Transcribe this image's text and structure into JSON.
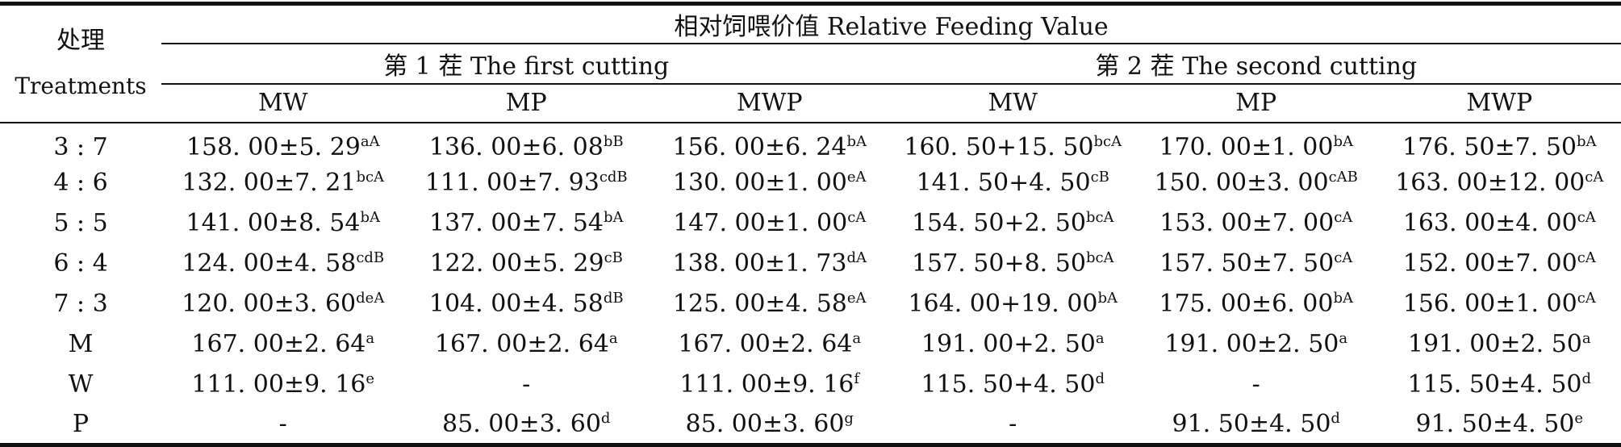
{
  "table": {
    "header": {
      "treatment_cn": "处理",
      "treatment_en": "Treatments",
      "rfv": "相对饲喂价值 Relative Feeding Value",
      "cutting1": "第 1 茬 The first cutting",
      "cutting2": "第 2 茬 The second cutting",
      "cols": [
        "MW",
        "MP",
        "MWP",
        "MW",
        "MP",
        "MWP"
      ]
    },
    "rows": [
      {
        "treatment": "3 : 7",
        "cells": [
          {
            "value": "158. 00±5. 29",
            "sig": "aA"
          },
          {
            "value": "136. 00±6. 08",
            "sig": "bB"
          },
          {
            "value": "156. 00±6. 24",
            "sig": "bA"
          },
          {
            "value": "160. 50+15. 50",
            "sig": "bcA"
          },
          {
            "value": "170. 00±1. 00",
            "sig": "bA"
          },
          {
            "value": "176. 50±7. 50",
            "sig": "bA"
          }
        ]
      },
      {
        "treatment": "4 : 6",
        "cells": [
          {
            "value": "132. 00±7. 21",
            "sig": "bcA"
          },
          {
            "value": "111. 00±7. 93",
            "sig": "cdB"
          },
          {
            "value": "130. 00±1. 00",
            "sig": "eA"
          },
          {
            "value": "141. 50+4. 50",
            "sig": "cB"
          },
          {
            "value": "150. 00±3. 00",
            "sig": "cAB"
          },
          {
            "value": "163. 00±12. 00",
            "sig": "cA"
          }
        ]
      },
      {
        "treatment": "5 : 5",
        "cells": [
          {
            "value": "141. 00±8. 54",
            "sig": "bA"
          },
          {
            "value": "137. 00±7. 54",
            "sig": "bA"
          },
          {
            "value": "147. 00±1. 00",
            "sig": "cA"
          },
          {
            "value": "154. 50+2. 50",
            "sig": "bcA"
          },
          {
            "value": "153. 00±7. 00",
            "sig": "cA"
          },
          {
            "value": "163. 00±4. 00",
            "sig": "cA"
          }
        ]
      },
      {
        "treatment": "6 : 4",
        "cells": [
          {
            "value": "124. 00±4. 58",
            "sig": "cdB"
          },
          {
            "value": "122. 00±5. 29",
            "sig": "cB"
          },
          {
            "value": "138. 00±1. 73",
            "sig": "dA"
          },
          {
            "value": "157. 50+8. 50",
            "sig": "bcA"
          },
          {
            "value": "157. 50±7. 50",
            "sig": "cA"
          },
          {
            "value": "152. 00±7. 00",
            "sig": "cA"
          }
        ]
      },
      {
        "treatment": "7 : 3",
        "cells": [
          {
            "value": "120. 00±3. 60",
            "sig": "deA"
          },
          {
            "value": "104. 00±4. 58",
            "sig": "dB"
          },
          {
            "value": "125. 00±4. 58",
            "sig": "eA"
          },
          {
            "value": "164. 00+19. 00",
            "sig": "bA"
          },
          {
            "value": "175. 00±6. 00",
            "sig": "bA"
          },
          {
            "value": "156. 00±1. 00",
            "sig": "cA"
          }
        ]
      },
      {
        "treatment": "M",
        "cells": [
          {
            "value": "167. 00±2. 64",
            "sig": "a"
          },
          {
            "value": "167. 00±2. 64",
            "sig": "a"
          },
          {
            "value": "167. 00±2. 64",
            "sig": "a"
          },
          {
            "value": "191. 00+2. 50",
            "sig": "a"
          },
          {
            "value": "191. 00±2. 50",
            "sig": "a"
          },
          {
            "value": "191. 00±2. 50",
            "sig": "a"
          }
        ]
      },
      {
        "treatment": "W",
        "cells": [
          {
            "value": "111. 00±9. 16",
            "sig": "e"
          },
          {
            "value": "-",
            "sig": ""
          },
          {
            "value": "111. 00±9. 16",
            "sig": "f"
          },
          {
            "value": "115. 50+4. 50",
            "sig": "d"
          },
          {
            "value": "-",
            "sig": ""
          },
          {
            "value": "115. 50±4. 50",
            "sig": "d"
          }
        ]
      },
      {
        "treatment": "P",
        "cells": [
          {
            "value": "-",
            "sig": ""
          },
          {
            "value": "85. 00±3. 60",
            "sig": "d"
          },
          {
            "value": "85. 00±3. 60",
            "sig": "g"
          },
          {
            "value": "-",
            "sig": ""
          },
          {
            "value": "91. 50±4. 50",
            "sig": "d"
          },
          {
            "value": "91. 50±4. 50",
            "sig": "e"
          }
        ]
      }
    ]
  }
}
